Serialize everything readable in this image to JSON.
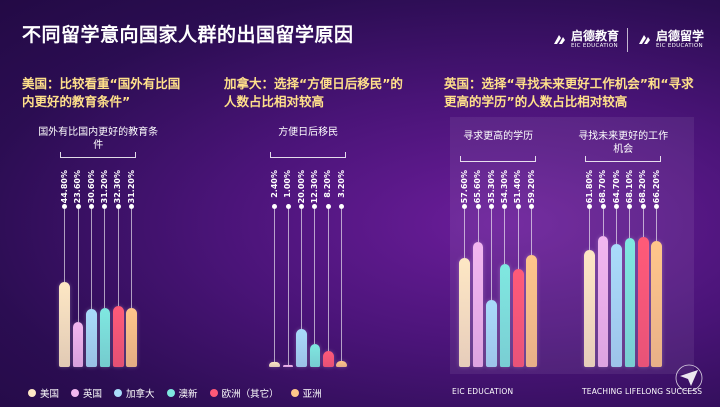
{
  "title": "不同留学意向国家人群的出国留学原因",
  "logos": [
    {
      "cn": "启德教育",
      "en": "EIC EDUCATION"
    },
    {
      "cn": "启德留学",
      "en": "EIC EDUCATION"
    }
  ],
  "headlines": {
    "us": "美国：比较看重“国外有比国内更好的教育条件”",
    "ca": "加拿大：选择“方便日后移民”的人数占比相对较高",
    "uk": "英国：选择“寻找未来更好工作机会”和“寻求更高的学历”的人数占比相对较高"
  },
  "footer": {
    "left": "EIC EDUCATION",
    "right": "TEACHING LIFELONG SUCCESS"
  },
  "colors": {
    "美国": "#fde7c4",
    "英国": "#f2b7f0",
    "加拿大": "#a9dcfa",
    "澳新": "#7fe8e0",
    "欧洲（其它）": "#ff5a78",
    "亚洲": "#ffc68a"
  },
  "chart_data": [
    {
      "type": "bar",
      "label": "国外有比国内更好的教育条件",
      "categories": [
        "美国",
        "英国",
        "加拿大",
        "澳新",
        "欧洲（其它）",
        "亚洲"
      ],
      "values": [
        44.8,
        23.6,
        30.6,
        31.2,
        32.3,
        31.2
      ],
      "value_labels": [
        "44.80%",
        "23.60%",
        "30.60%",
        "31.20%",
        "32.30%",
        "31.20%"
      ],
      "ylim": [
        0,
        100
      ]
    },
    {
      "type": "bar",
      "label": "方便日后移民",
      "categories": [
        "美国",
        "英国",
        "加拿大",
        "澳新",
        "欧洲（其它）",
        "亚洲"
      ],
      "values": [
        2.4,
        1.0,
        20.0,
        12.3,
        8.2,
        3.2
      ],
      "value_labels": [
        "2.40%",
        "1.00%",
        "20.00%",
        "12.30%",
        "8.20%",
        "3.20%"
      ],
      "ylim": [
        0,
        100
      ]
    },
    {
      "type": "bar",
      "label": "寻求更高的学历",
      "categories": [
        "美国",
        "英国",
        "加拿大",
        "澳新",
        "欧洲（其它）",
        "亚洲"
      ],
      "values": [
        57.6,
        65.6,
        35.3,
        54.3,
        51.4,
        59.2
      ],
      "value_labels": [
        "57.60%",
        "65.60%",
        "35.30%",
        "54.30%",
        "51.40%",
        "59.20%"
      ],
      "ylim": [
        0,
        100
      ]
    },
    {
      "type": "bar",
      "label": "寻找未来更好的工作机会",
      "categories": [
        "美国",
        "英国",
        "加拿大",
        "澳新",
        "欧洲（其它）",
        "亚洲"
      ],
      "values": [
        61.8,
        68.7,
        64.7,
        68.1,
        68.2,
        66.2
      ],
      "value_labels": [
        "61.80%",
        "68.70%",
        "64.70%",
        "68.10%",
        "68.20%",
        "66.20%"
      ],
      "ylim": [
        0,
        100
      ]
    }
  ],
  "legend": [
    "美国",
    "英国",
    "加拿大",
    "澳新",
    "欧洲（其它）",
    "亚洲"
  ]
}
